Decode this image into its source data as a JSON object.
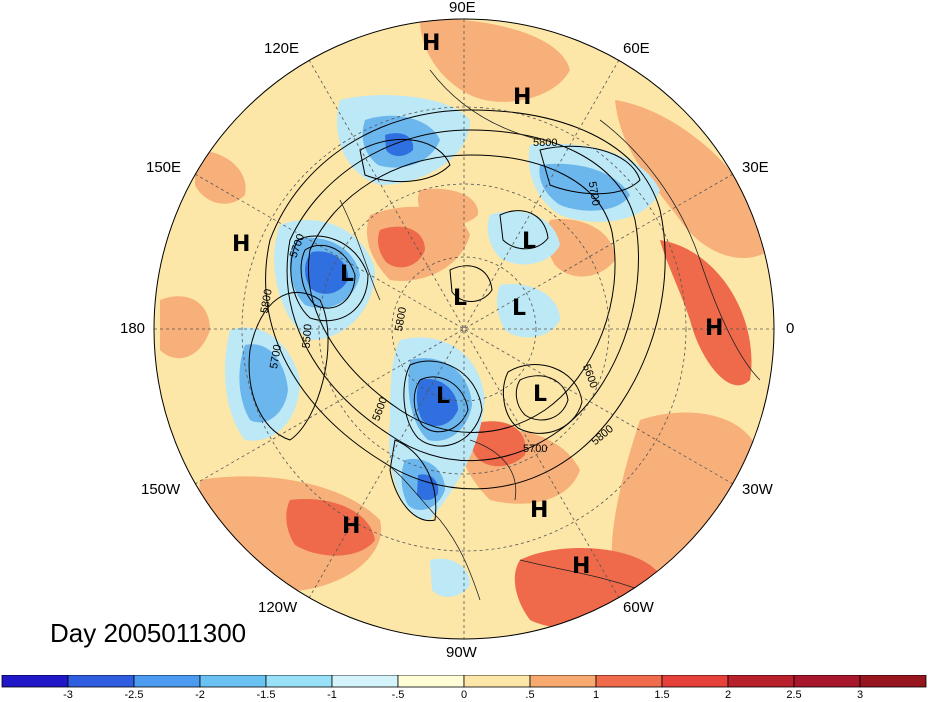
{
  "title": "Day 2005011300",
  "map": {
    "projection": "north-polar-stereographic",
    "longitude_labels": [
      "90E",
      "120E",
      "60E",
      "150E",
      "30E",
      "180",
      "0",
      "150W",
      "30W",
      "120W",
      "60W",
      "90W"
    ],
    "pressure_centers": [
      {
        "type": "H",
        "region": "East Siberia"
      },
      {
        "type": "H",
        "region": "Western Siberia"
      },
      {
        "type": "H",
        "region": "North Pacific (west)"
      },
      {
        "type": "L",
        "region": "Bering Sea"
      },
      {
        "type": "L",
        "region": "Scandinavia"
      },
      {
        "type": "L",
        "region": "Arctic Ocean"
      },
      {
        "type": "L",
        "region": "Greenland"
      },
      {
        "type": "H",
        "region": "North Africa"
      },
      {
        "type": "L",
        "region": "Hudson Bay"
      },
      {
        "type": "L",
        "region": "Labrador Sea"
      },
      {
        "type": "H",
        "region": "Northeast Pacific"
      },
      {
        "type": "H",
        "region": "Central Atlantic"
      },
      {
        "type": "H",
        "region": "South America"
      }
    ],
    "contour_labels": [
      "5800",
      "5700",
      "5700",
      "5800",
      "5500",
      "5700",
      "5800",
      "5600",
      "5600",
      "5700",
      "5800"
    ]
  },
  "colorbar": {
    "ticks": [
      "-3",
      "-2.5",
      "-2",
      "-1.5",
      "-1",
      "-.5",
      "0",
      ".5",
      "1",
      "1.5",
      "2",
      "2.5",
      "3"
    ],
    "colors": [
      "#1f17c8",
      "#2e5de0",
      "#4c9bf0",
      "#6ac2f2",
      "#98e1f6",
      "#d5f3fb",
      "#fefdd6",
      "#fce7a8",
      "#f7a970",
      "#ef6b4b",
      "#e6403b",
      "#b8202b",
      "#a8162b",
      "#96151f"
    ]
  },
  "colors": {
    "warm_light": "#fde8ae",
    "warm_mid": "#f7b07a",
    "warm_strong": "#ee6a4a",
    "cold_light": "#bde8f5",
    "cold_mid": "#6cb6ee",
    "cold_strong": "#2f6fdf"
  }
}
